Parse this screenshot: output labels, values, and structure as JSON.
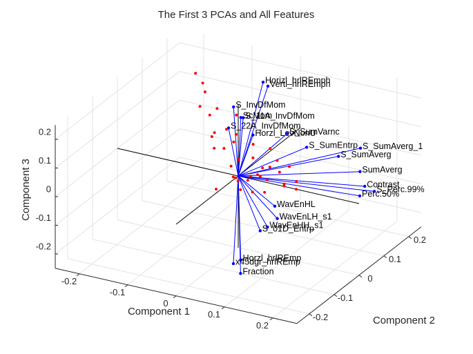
{
  "chart_data": {
    "type": "biplot3d",
    "title": "The First 3 PCAs and All Features",
    "xlabel": "Component 1",
    "ylabel": "Component 2",
    "zlabel": "Component 3",
    "xlim": [
      -0.25,
      0.25
    ],
    "ylim": [
      -0.25,
      0.25
    ],
    "zlim": [
      -0.25,
      0.25
    ],
    "xticks": [
      -0.2,
      -0.1,
      0,
      0.1,
      0.2
    ],
    "yticks": [
      -0.2,
      -0.1,
      0,
      0.1,
      0.2
    ],
    "zticks": [
      -0.2,
      -0.1,
      0,
      0.1,
      0.2
    ],
    "grid": true,
    "vector_color": "#0000ff",
    "point_color": "#ff0000",
    "features": [
      "Horizl_hrlREmph",
      "Vertl_hrlREmph",
      "S_InvDfMom",
      "S_11A_InvDfMom",
      "S_22A_InvDfMom",
      "ScMom",
      "Horzl_LevNonU",
      "S_SumAverg_1",
      "S_SumAverg",
      "SumAverg",
      "Contrast",
      "Perc.50%",
      "S_Perc.99%",
      "WavEnHL",
      "WavEnLH_s1",
      "WavEnHH_s1",
      "S_01D_Entrp",
      "Horzl_hrlREmp",
      "x45dgr_hrlREmp",
      "Fraction",
      "S_SumVarnc",
      "S_SumEntrp"
    ],
    "loadings": {
      "x": [
        0,
        0.01,
        -0.02,
        0,
        -0.02,
        -0.01,
        0.01,
        0.15,
        0.12,
        0.18,
        0.2,
        0.2,
        0.22,
        0.05,
        0.05,
        0.04,
        0.03,
        0,
        -0.01,
        0.01,
        0.05,
        0.08
      ],
      "y": [
        0.1,
        0.1,
        0.02,
        0.02,
        0,
        0.03,
        0.04,
        0.2,
        0.17,
        0.14,
        0.12,
        0.1,
        0.12,
        0.05,
        0.06,
        0.04,
        0.03,
        0.01,
        0,
        -0.01,
        0.1,
        0.12
      ],
      "z": [
        0.26,
        0.25,
        0.22,
        0.19,
        0.16,
        0.18,
        0.12,
        0.02,
        0,
        -0.01,
        -0.04,
        -0.06,
        -0.05,
        -0.12,
        -0.17,
        -0.19,
        -0.2,
        -0.3,
        -0.31,
        -0.33,
        0.1,
        0.05
      ]
    },
    "scores": {
      "x": [
        -0.02,
        0.01,
        0.03,
        -0.05,
        0.06,
        -0.08,
        0.02,
        0.04,
        -0.03,
        0,
        0.07,
        -0.1,
        -0.06,
        0.05,
        0.09,
        -0.04,
        0.01,
        -0.12,
        0.03,
        0.08,
        -0.07,
        0.11,
        -0.02,
        0,
        0.04,
        -0.09,
        0.06,
        -0.15,
        0.02,
        -0.05,
        0.1,
        -0.01,
        0.03,
        -0.11,
        0.07,
        -0.13,
        0.05,
        0.12,
        -0.03,
        0
      ],
      "y": [
        0.01,
        -0.02,
        0.03,
        0.04,
        0,
        0.06,
        -0.03,
        0.02,
        0.05,
        -0.01,
        0.03,
        0.08,
        0.02,
        -0.04,
        0.01,
        0.07,
        0.04,
        0.1,
        -0.02,
        0.05,
        0.03,
        0.02,
        -0.05,
        0.06,
        0,
        0.09,
        0.04,
        0.12,
        0.01,
        0.05,
        -0.01,
        0.02,
        0.07,
        0.06,
        -0.03,
        0.11,
        0.03,
        0,
        0.04,
        -0.02
      ],
      "z": [
        0.02,
        0,
        -0.01,
        0.05,
        0.01,
        0.08,
        -0.02,
        0.03,
        0.1,
        0,
        0.02,
        0.12,
        0.06,
        -0.01,
        0,
        0.15,
        0.04,
        0.18,
        0.01,
        0.03,
        0.09,
        0.01,
        -0.02,
        0.07,
        0.02,
        0.14,
        0.05,
        0.22,
        0,
        0.11,
        0.01,
        0.04,
        0.06,
        0.16,
        -0.01,
        0.2,
        0.03,
        0,
        0.08,
        0.01
      ]
    }
  }
}
